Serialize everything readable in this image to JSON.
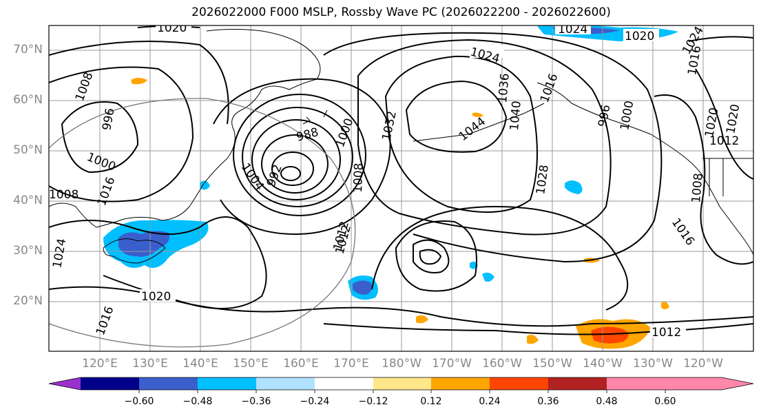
{
  "title": "2026022000 F000 MSLP, Rossby Wave PC (2026022200 - 2026022600)",
  "latitude_labels": [
    "70°N",
    "60°N",
    "50°N",
    "40°N",
    "30°N",
    "20°N"
  ],
  "longitude_labels": [
    "120°E",
    "130°E",
    "140°E",
    "150°E",
    "160°E",
    "170°E",
    "180°W",
    "170°W",
    "160°W",
    "150°W",
    "140°W",
    "130°W",
    "120°W"
  ],
  "contour_labels": [
    "1020",
    "1024",
    "1020",
    "1024",
    "1016",
    "1020",
    "1024",
    "1032",
    "1040",
    "1036",
    "1044",
    "1000",
    "1008",
    "996",
    "988",
    "992",
    "1000",
    "1004",
    "1008",
    "1012",
    "1016",
    "1028",
    "1016",
    "1020",
    "1012",
    "1008",
    "996",
    "1000",
    "1008",
    "1012",
    "1016",
    "1024",
    "1020",
    "1016",
    "1012"
  ],
  "colorbar": {
    "ticks": [
      "−0.60",
      "−0.48",
      "−0.36",
      "−0.24",
      "−0.12",
      "0.12",
      "0.24",
      "0.36",
      "0.48",
      "0.60"
    ],
    "colors": [
      "#9932cc",
      "#00008b",
      "#3a5fcd",
      "#00bfff",
      "#b0e2ff",
      "#ffffff",
      "#ffe78a",
      "#ffa500",
      "#ff4500",
      "#b22222",
      "#ff88aa"
    ]
  }
}
